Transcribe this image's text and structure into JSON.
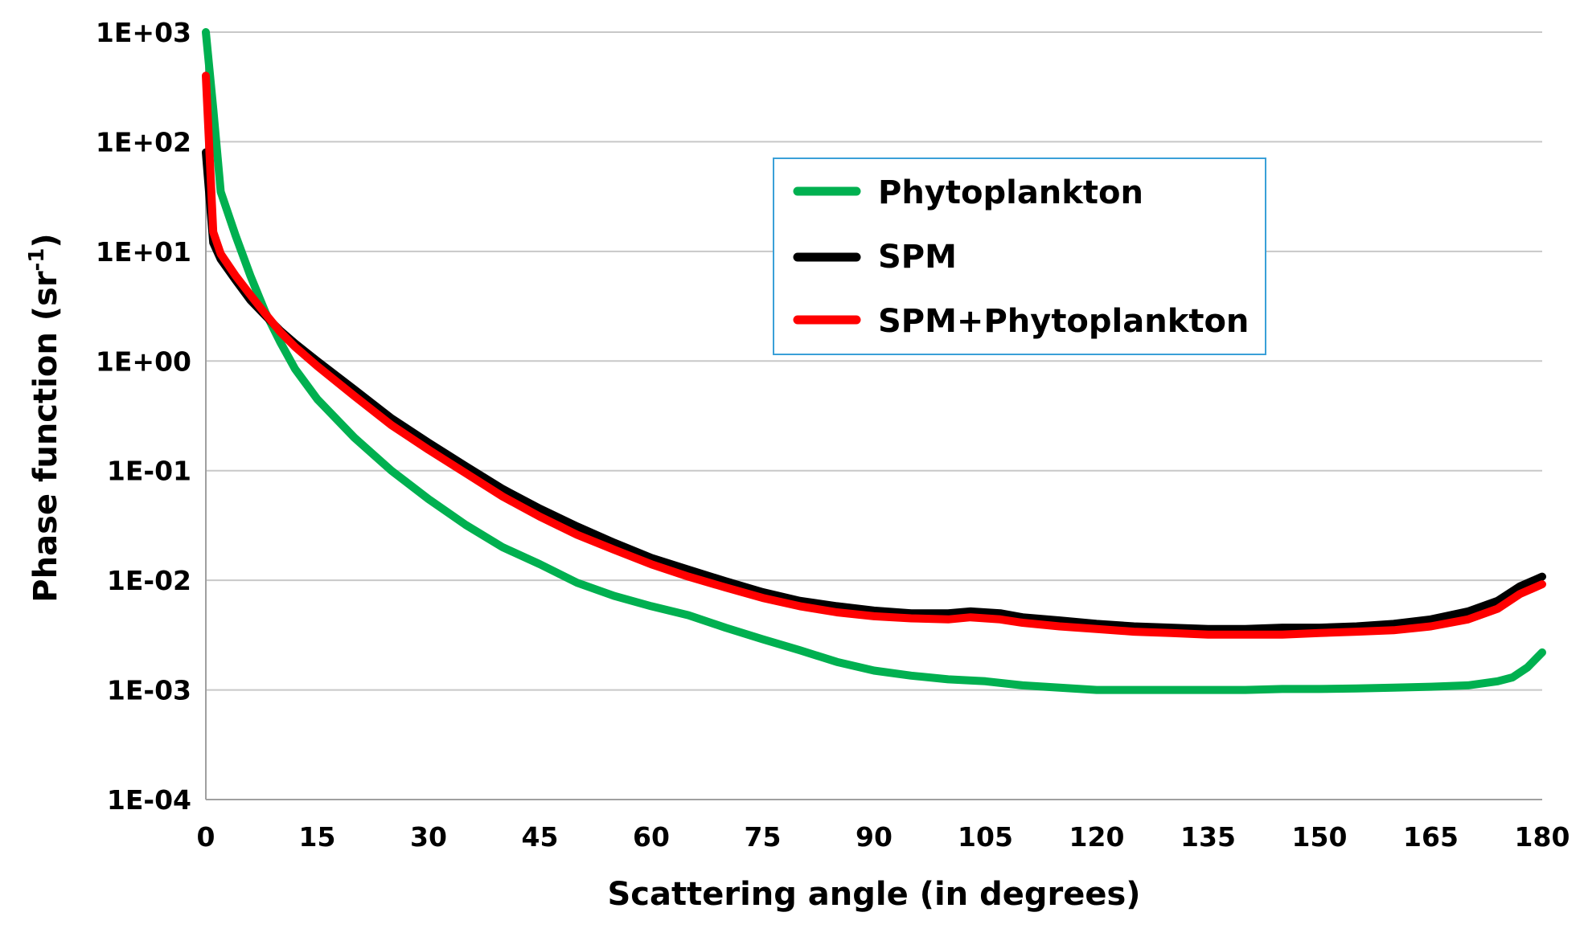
{
  "chart_data": {
    "type": "line",
    "title": "",
    "xlabel": "Scattering angle (in degrees)",
    "ylabel_main": "Phase function (sr",
    "ylabel_sup": "-1",
    "ylabel_close": ")",
    "xscale": "linear",
    "yscale": "log",
    "xlim": [
      0,
      180
    ],
    "ylim": [
      0.0001,
      1000
    ],
    "x_ticks": [
      0,
      15,
      30,
      45,
      60,
      75,
      90,
      105,
      120,
      135,
      150,
      165,
      180
    ],
    "x_tick_labels": [
      "0",
      "15",
      "30",
      "45",
      "60",
      "75",
      "90",
      "105",
      "120",
      "135",
      "150",
      "165",
      "180"
    ],
    "y_ticks": [
      0.0001,
      0.001,
      0.01,
      0.1,
      1,
      10,
      100,
      1000
    ],
    "y_tick_labels": [
      "1E-04",
      "1E-03",
      "1E-02",
      "1E-01",
      "1E+00",
      "1E+01",
      "1E+02",
      "1E+03"
    ],
    "grid": true,
    "legend_position": "top-right",
    "series": [
      {
        "name": "Phytoplankton",
        "color": "#00b050",
        "x": [
          0,
          1,
          2,
          4,
          6,
          8,
          10,
          12,
          15,
          20,
          25,
          30,
          35,
          40,
          45,
          50,
          55,
          60,
          65,
          70,
          75,
          80,
          85,
          90,
          95,
          100,
          105,
          110,
          115,
          120,
          125,
          130,
          135,
          140,
          145,
          150,
          155,
          160,
          165,
          170,
          174,
          176,
          178,
          180
        ],
        "y": [
          1000,
          200,
          35,
          14,
          6,
          2.8,
          1.5,
          0.85,
          0.45,
          0.2,
          0.1,
          0.055,
          0.032,
          0.02,
          0.014,
          0.0095,
          0.0072,
          0.0058,
          0.0048,
          0.0037,
          0.0029,
          0.0023,
          0.0018,
          0.0015,
          0.00135,
          0.00125,
          0.0012,
          0.0011,
          0.00105,
          0.001,
          0.001,
          0.001,
          0.001,
          0.001,
          0.00102,
          0.00102,
          0.00103,
          0.00105,
          0.00107,
          0.0011,
          0.0012,
          0.0013,
          0.0016,
          0.0022
        ]
      },
      {
        "name": "SPM",
        "color": "#000000",
        "x": [
          0,
          1,
          2,
          4,
          6,
          8,
          10,
          12,
          15,
          20,
          25,
          30,
          35,
          40,
          45,
          50,
          55,
          60,
          65,
          70,
          75,
          80,
          85,
          90,
          95,
          100,
          103,
          107,
          110,
          115,
          120,
          125,
          130,
          135,
          140,
          145,
          150,
          155,
          160,
          165,
          170,
          174,
          177,
          180
        ],
        "y": [
          80,
          12,
          8.5,
          5.5,
          3.6,
          2.6,
          1.9,
          1.45,
          1.0,
          0.55,
          0.3,
          0.18,
          0.11,
          0.068,
          0.045,
          0.031,
          0.022,
          0.016,
          0.0125,
          0.0098,
          0.0078,
          0.0065,
          0.0058,
          0.0053,
          0.005,
          0.005,
          0.0052,
          0.005,
          0.0046,
          0.0043,
          0.004,
          0.0038,
          0.0037,
          0.0036,
          0.0036,
          0.0037,
          0.0037,
          0.0038,
          0.004,
          0.0044,
          0.0052,
          0.0065,
          0.0088,
          0.0108
        ]
      },
      {
        "name": "SPM+Phytoplankton",
        "color": "#ff0000",
        "x": [
          0,
          1,
          2,
          4,
          6,
          8,
          10,
          12,
          15,
          20,
          25,
          30,
          35,
          40,
          45,
          50,
          55,
          60,
          65,
          70,
          75,
          80,
          85,
          90,
          95,
          100,
          103,
          107,
          110,
          115,
          120,
          125,
          130,
          135,
          140,
          145,
          150,
          155,
          160,
          165,
          170,
          174,
          177,
          180
        ],
        "y": [
          400,
          15,
          9.5,
          6.0,
          4.0,
          2.7,
          1.85,
          1.35,
          0.9,
          0.48,
          0.26,
          0.155,
          0.095,
          0.058,
          0.038,
          0.026,
          0.019,
          0.014,
          0.0108,
          0.0086,
          0.0069,
          0.0058,
          0.0051,
          0.0047,
          0.0045,
          0.0044,
          0.0046,
          0.0044,
          0.0041,
          0.0038,
          0.0036,
          0.0034,
          0.0033,
          0.0032,
          0.0032,
          0.0032,
          0.0033,
          0.0034,
          0.0035,
          0.0038,
          0.0044,
          0.0055,
          0.0075,
          0.0092
        ]
      }
    ]
  }
}
